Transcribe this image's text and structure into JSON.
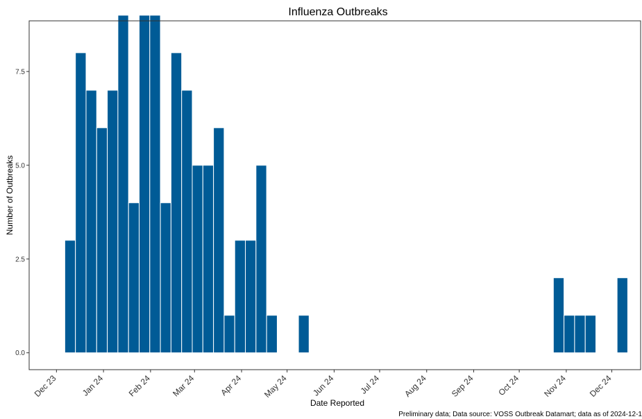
{
  "chart_data": {
    "type": "bar",
    "title": "Influenza Outbreaks",
    "xlabel": "Date Reported",
    "ylabel": "Number of Outbreaks",
    "caption": "Preliminary data; Data source: VOSS Outbreak Datamart; data as of 2024-12-1",
    "bar_color": "#005b96",
    "grid": false,
    "legend": "none",
    "xlim": [
      "2023-11-13",
      "2024-12-20"
    ],
    "ylim": [
      -0.45,
      8.85
    ],
    "x_ticks": [
      {
        "date": "2023-12-01",
        "label": "Dec 23"
      },
      {
        "date": "2024-01-01",
        "label": "Jan 24"
      },
      {
        "date": "2024-02-01",
        "label": "Feb 24"
      },
      {
        "date": "2024-03-01",
        "label": "Mar 24"
      },
      {
        "date": "2024-04-01",
        "label": "Apr 24"
      },
      {
        "date": "2024-05-01",
        "label": "May 24"
      },
      {
        "date": "2024-06-01",
        "label": "Jun 24"
      },
      {
        "date": "2024-07-01",
        "label": "Jul 24"
      },
      {
        "date": "2024-08-01",
        "label": "Aug 24"
      },
      {
        "date": "2024-09-01",
        "label": "Sep 24"
      },
      {
        "date": "2024-10-01",
        "label": "Oct 24"
      },
      {
        "date": "2024-11-01",
        "label": "Nov 24"
      },
      {
        "date": "2024-12-01",
        "label": "Dec 24"
      }
    ],
    "y_ticks": [
      {
        "value": 0,
        "label": "0.0"
      },
      {
        "value": 2.5,
        "label": "2.5"
      },
      {
        "value": 5,
        "label": "5.0"
      },
      {
        "value": 7.5,
        "label": "7.5"
      }
    ],
    "bar_width_days": 7,
    "bars": [
      {
        "week": "2023-12-10",
        "value": 3
      },
      {
        "week": "2023-12-17",
        "value": 8
      },
      {
        "week": "2023-12-24",
        "value": 7
      },
      {
        "week": "2023-12-31",
        "value": 6
      },
      {
        "week": "2024-01-07",
        "value": 7
      },
      {
        "week": "2024-01-14",
        "value": 9
      },
      {
        "week": "2024-01-21",
        "value": 4
      },
      {
        "week": "2024-01-28",
        "value": 9
      },
      {
        "week": "2024-02-04",
        "value": 9
      },
      {
        "week": "2024-02-11",
        "value": 4
      },
      {
        "week": "2024-02-18",
        "value": 8
      },
      {
        "week": "2024-02-25",
        "value": 7
      },
      {
        "week": "2024-03-03",
        "value": 5
      },
      {
        "week": "2024-03-10",
        "value": 5
      },
      {
        "week": "2024-03-17",
        "value": 6
      },
      {
        "week": "2024-03-24",
        "value": 1
      },
      {
        "week": "2024-03-31",
        "value": 3
      },
      {
        "week": "2024-04-07",
        "value": 3
      },
      {
        "week": "2024-04-14",
        "value": 5
      },
      {
        "week": "2024-04-21",
        "value": 1
      },
      {
        "week": "2024-05-12",
        "value": 1
      },
      {
        "week": "2024-10-27",
        "value": 2
      },
      {
        "week": "2024-11-03",
        "value": 1
      },
      {
        "week": "2024-11-10",
        "value": 1
      },
      {
        "week": "2024-11-17",
        "value": 1
      },
      {
        "week": "2024-12-08",
        "value": 2
      }
    ]
  }
}
